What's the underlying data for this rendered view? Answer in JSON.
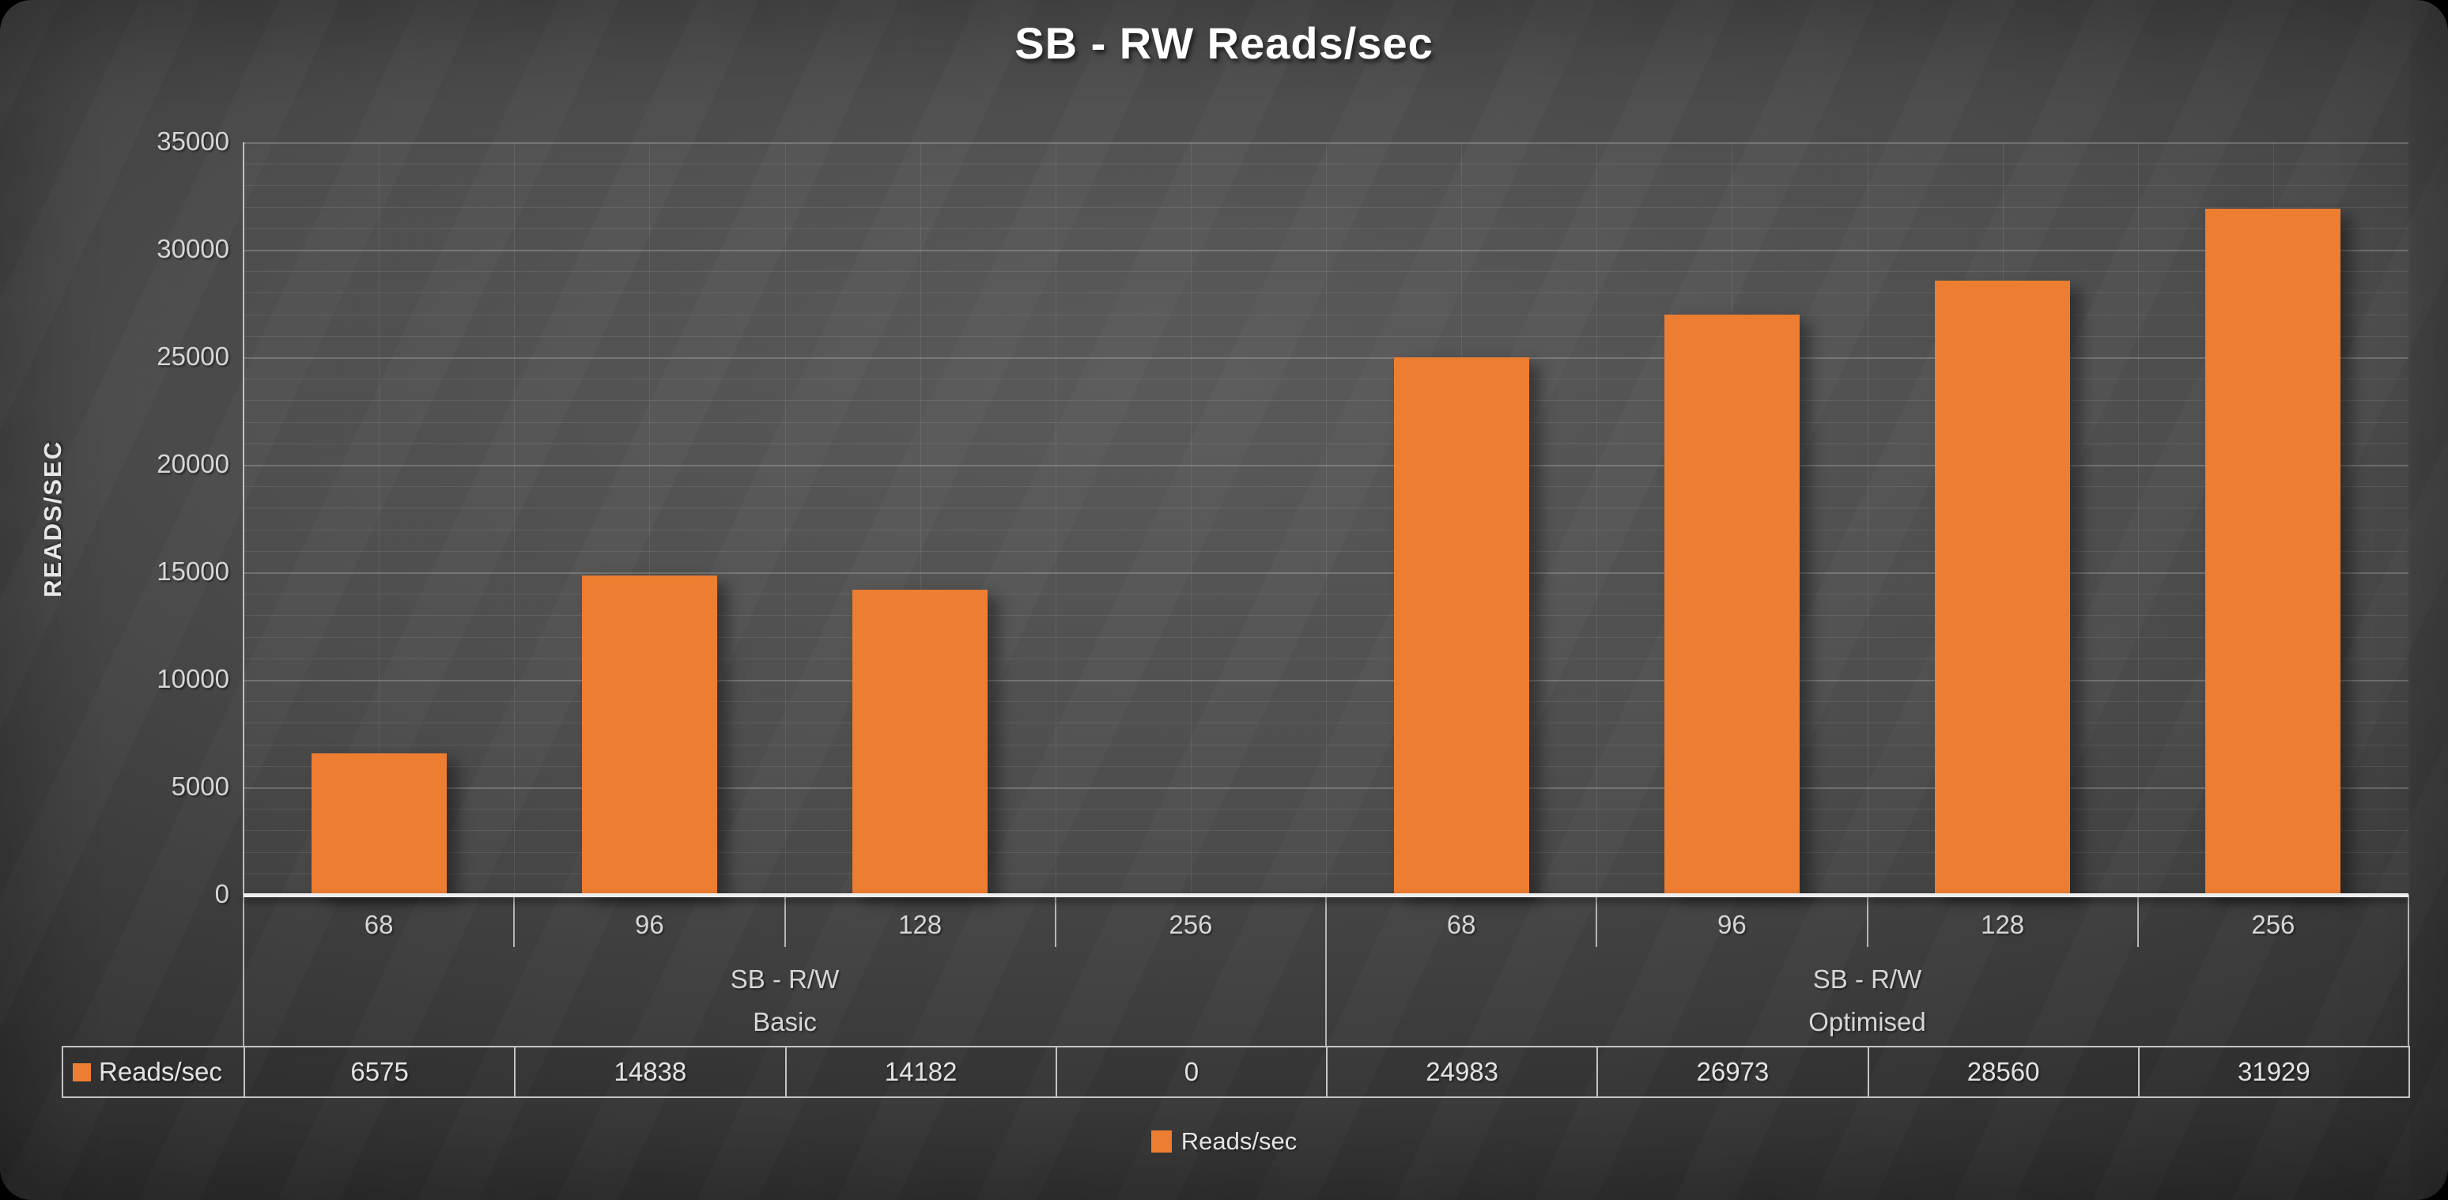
{
  "page": {
    "title": "SB - RW Reads/sec"
  },
  "colors": {
    "accent_orange": "#ED7D31",
    "background_center": "#585858",
    "background_edge": "#212121",
    "text_light": "#e3e3e3",
    "gridline": "rgba(255,255,255,0.09)",
    "table_border": "#c4c4c4"
  },
  "chart_data": {
    "type": "bar",
    "title": "SB - RW Reads/sec",
    "xlabel": "",
    "ylabel": "READS/SEC",
    "ylim": [
      0,
      35000
    ],
    "y_major_step": 5000,
    "y_minor_step": 1000,
    "y_ticks": [
      "0",
      "5000",
      "10000",
      "15000",
      "20000",
      "25000",
      "30000",
      "35000"
    ],
    "grid": "horizontal minor+major gridlines, vertical category separator lines",
    "legend_position": "bottom",
    "categories": [
      "68",
      "96",
      "128",
      "256",
      "68",
      "96",
      "128",
      "256"
    ],
    "category_groups": [
      {
        "title": "SB - R/W",
        "subtitle": "Basic",
        "span": 4
      },
      {
        "title": "SB - R/W",
        "subtitle": "Optimised",
        "span": 4
      }
    ],
    "series": [
      {
        "name": "Reads/sec",
        "color": "#ED7D31",
        "values": [
          6575,
          14838,
          14182,
          0,
          24983,
          26973,
          28560,
          31929
        ]
      }
    ],
    "data_table": {
      "row_header": "Reads/sec",
      "values": [
        "6575",
        "14838",
        "14182",
        "0",
        "24983",
        "26973",
        "28560",
        "31929"
      ]
    },
    "legend": [
      "Reads/sec"
    ]
  }
}
